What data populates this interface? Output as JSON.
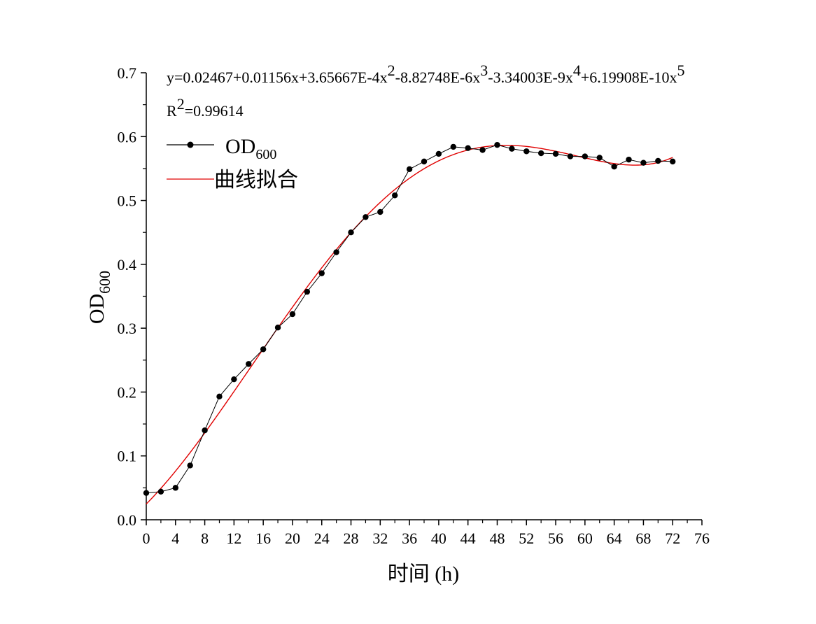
{
  "chart_data": {
    "type": "line",
    "xlabel": "时间 (h)",
    "ylabel": {
      "main": "OD",
      "sub": "600"
    },
    "xlim": [
      0,
      76
    ],
    "ylim": [
      0,
      0.7
    ],
    "x_ticks": [
      "0",
      "4",
      "8",
      "12",
      "16",
      "20",
      "24",
      "28",
      "32",
      "36",
      "40",
      "44",
      "48",
      "52",
      "56",
      "60",
      "64",
      "68",
      "72",
      "76"
    ],
    "y_ticks": [
      "0.0",
      "0.1",
      "0.2",
      "0.3",
      "0.4",
      "0.5",
      "0.6",
      "0.7"
    ],
    "grid": false,
    "legend_position": "top-left",
    "fit_equation": {
      "parts": [
        {
          "t": "y=0.02467+0.01156x+3.65667E-4x",
          "sup": false
        },
        {
          "t": "2",
          "sup": true
        },
        {
          "t": "-8.82748E-6x",
          "sup": false
        },
        {
          "t": "3",
          "sup": true
        },
        {
          "t": "-3.34003E-9x",
          "sup": false
        },
        {
          "t": "4",
          "sup": true
        },
        {
          "t": "+6.19908E-10x",
          "sup": false
        },
        {
          "t": "5",
          "sup": true
        }
      ],
      "coefficients": [
        0.02467,
        0.01156,
        0.000365667,
        -8.82748e-06,
        -3.34003e-09,
        6.19908e-10
      ]
    },
    "r_squared": {
      "label": "R",
      "sup": "2",
      "value": "=0.99614"
    },
    "series": [
      {
        "name": "OD",
        "name_sub": "600",
        "color": "#000000",
        "marker": "circle",
        "x": [
          0,
          2,
          4,
          6,
          8,
          10,
          12,
          14,
          16,
          18,
          20,
          22,
          24,
          26,
          28,
          30,
          32,
          34,
          36,
          38,
          40,
          42,
          44,
          46,
          48,
          50,
          52,
          54,
          56,
          58,
          60,
          62,
          64,
          66,
          68,
          70,
          72
        ],
        "y": [
          0.042,
          0.044,
          0.05,
          0.085,
          0.14,
          0.193,
          0.22,
          0.244,
          0.267,
          0.301,
          0.322,
          0.357,
          0.386,
          0.419,
          0.45,
          0.474,
          0.482,
          0.508,
          0.549,
          0.561,
          0.573,
          0.584,
          0.582,
          0.579,
          0.587,
          0.581,
          0.577,
          0.574,
          0.573,
          0.569,
          0.569,
          0.567,
          0.553,
          0.564,
          0.559,
          0.562,
          0.561
        ]
      },
      {
        "name": "曲线拟合",
        "color": "#e00000",
        "type": "fit",
        "x_range": [
          0,
          72
        ]
      }
    ]
  }
}
